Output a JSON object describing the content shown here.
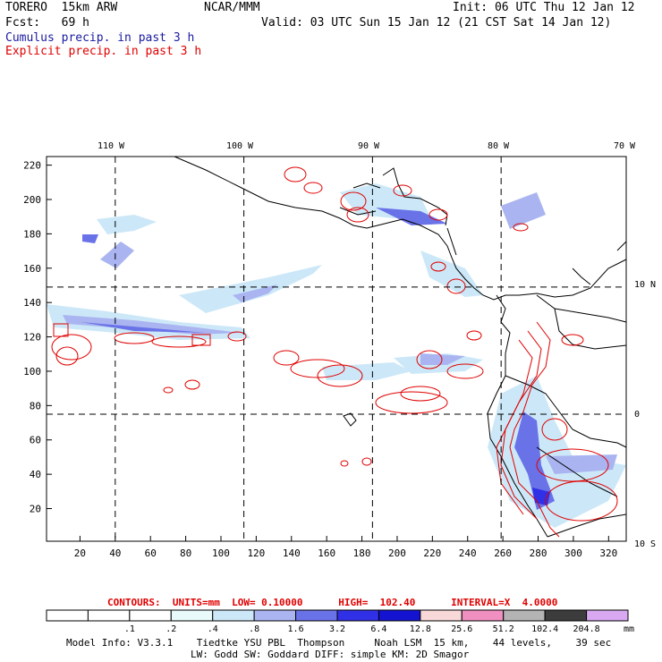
{
  "header": {
    "model": "TORERO  15km ARW",
    "org": "NCAR/MMM",
    "init": "Init: 06 UTC Thu 12 Jan 12",
    "fcst": "Fcst:   69 h",
    "valid": "Valid: 03 UTC Sun 15 Jan 12 (21 CST Sat 14 Jan 12)",
    "field1": "Cumulus precip. in past 3 h",
    "field2": "Explicit precip. in past 3 h"
  },
  "colors": {
    "field1": "#1a1aa0",
    "field2": "#e00000",
    "contour": "#e00000",
    "coast": "#000000"
  },
  "map": {
    "top_lon_labels": [
      "110 W",
      "100 W",
      "90 W",
      "80 W",
      "70 W"
    ],
    "right_lat_labels": [
      "10 N",
      "0",
      "10 S"
    ],
    "x_ticks": [
      "20",
      "40",
      "60",
      "80",
      "100",
      "120",
      "140",
      "160",
      "180",
      "200",
      "220",
      "240",
      "260",
      "280",
      "300",
      "320"
    ],
    "y_ticks": [
      "20",
      "40",
      "60",
      "80",
      "100",
      "120",
      "140",
      "160",
      "180",
      "200",
      "220"
    ],
    "x_range": [
      1,
      330
    ],
    "y_range": [
      1,
      225
    ],
    "grid_x": [
      40,
      113,
      186,
      259
    ],
    "grid_y": [
      75,
      149
    ]
  },
  "contour_info": {
    "label": "CONTOURS:  UNITS=mm  LOW= 0.10000      HIGH=  102.40      INTERVAL=X  4.0000"
  },
  "colorbar": {
    "labels": [
      ".1",
      ".2",
      ".4",
      ".8",
      "1.6",
      "3.2",
      "6.4",
      "12.8",
      "25.6",
      "51.2",
      "102.4",
      "204.8"
    ],
    "unit": "mm",
    "colors": [
      "#ffffff",
      "#ffffff",
      "#ffffff",
      "#e8fafa",
      "#cce8f8",
      "#aab4f0",
      "#6a72e8",
      "#3030e6",
      "#1414d0",
      "#f8d8d8",
      "#f090c0",
      "#b4b4b4",
      "#3c3c3c",
      "#d8a8f0"
    ]
  },
  "footer": {
    "line1": "Model Info: V3.3.1    Tiedtke YSU PBL  Thompson     Noah LSM  15 km,    44 levels,    39 sec",
    "line2": "LW: Godd SW: Goddard DIFF: simple KM: 2D Smagor"
  }
}
